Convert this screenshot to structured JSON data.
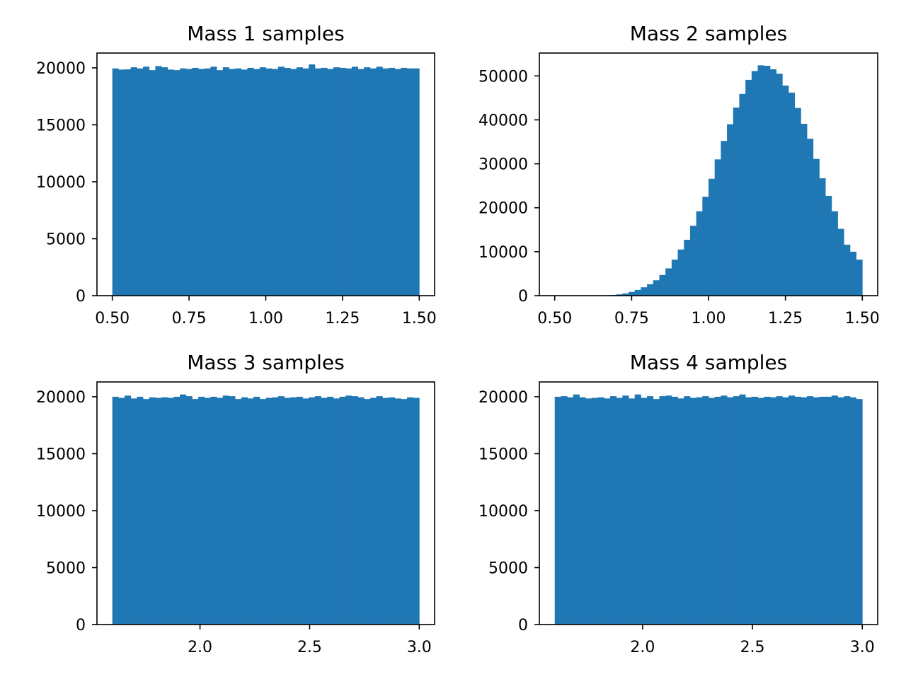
{
  "bar_color": "#1f77b4",
  "chart_data": [
    {
      "type": "bar",
      "title": "Mass 1 samples",
      "xlabel": "",
      "ylabel": "",
      "bins": 50,
      "x_range": [
        0.5,
        1.5
      ],
      "xlim": [
        0.45,
        1.55
      ],
      "ylim": [
        0,
        21300
      ],
      "xticks": [
        "0.50",
        "0.75",
        "1.00",
        "1.25",
        "1.50"
      ],
      "yticks": [
        "0",
        "5000",
        "10000",
        "15000",
        "20000"
      ],
      "values": [
        19950,
        19850,
        19870,
        20050,
        19950,
        20100,
        19800,
        20150,
        20050,
        19850,
        19800,
        19950,
        19900,
        20000,
        19900,
        19950,
        20100,
        19800,
        20050,
        19900,
        19950,
        19850,
        20000,
        19900,
        20050,
        19950,
        19900,
        20100,
        20000,
        19900,
        20050,
        19950,
        20300,
        19950,
        20000,
        19900,
        20050,
        20000,
        19950,
        20100,
        19900,
        20050,
        19950,
        20100,
        19950,
        20000,
        19900,
        20000,
        19950,
        19950
      ]
    },
    {
      "type": "bar",
      "title": "Mass 2 samples",
      "xlabel": "",
      "ylabel": "",
      "bins": 50,
      "x_range": [
        0.5,
        1.5
      ],
      "xlim": [
        0.45,
        1.55
      ],
      "ylim": [
        0,
        55200
      ],
      "xticks": [
        "0.50",
        "0.75",
        "1.00",
        "1.25",
        "1.50"
      ],
      "yticks": [
        "0",
        "10000",
        "20000",
        "30000",
        "40000",
        "50000"
      ],
      "values": [
        0,
        0,
        0,
        0,
        0,
        0,
        10,
        30,
        80,
        150,
        300,
        500,
        850,
        1300,
        1900,
        2600,
        3500,
        4700,
        6200,
        8200,
        10500,
        12700,
        15900,
        19200,
        22500,
        26600,
        31000,
        35200,
        39000,
        42800,
        45900,
        49100,
        51100,
        52400,
        52300,
        51500,
        50500,
        47800,
        46200,
        42700,
        39100,
        35700,
        31100,
        26700,
        22700,
        19200,
        15200,
        11600,
        10000,
        8200
      ]
    },
    {
      "type": "bar",
      "title": "Mass 3 samples",
      "xlabel": "",
      "ylabel": "",
      "bins": 50,
      "x_range": [
        1.6,
        3.0
      ],
      "xlim": [
        1.53,
        3.07
      ],
      "ylim": [
        0,
        21300
      ],
      "xticks": [
        "2.0",
        "2.5",
        "3.0"
      ],
      "yticks": [
        "0",
        "5000",
        "10000",
        "15000",
        "20000"
      ],
      "values": [
        20000,
        19900,
        20100,
        19850,
        20000,
        19800,
        19950,
        19900,
        19950,
        19900,
        20000,
        20200,
        20050,
        19800,
        20000,
        19900,
        20000,
        19900,
        20100,
        20050,
        19800,
        19950,
        19850,
        20000,
        19800,
        19900,
        19950,
        20050,
        19900,
        19950,
        20000,
        19850,
        19950,
        20050,
        19900,
        20000,
        19850,
        20000,
        20100,
        20050,
        19950,
        19800,
        19900,
        20050,
        19900,
        19950,
        19850,
        19800,
        19950,
        19900
      ]
    },
    {
      "type": "bar",
      "title": "Mass 4 samples",
      "xlabel": "",
      "ylabel": "",
      "bins": 50,
      "x_range": [
        1.6,
        3.0
      ],
      "xlim": [
        1.53,
        3.07
      ],
      "ylim": [
        0,
        21300
      ],
      "xticks": [
        "2.0",
        "2.5",
        "3.0"
      ],
      "yticks": [
        "0",
        "5000",
        "10000",
        "15000",
        "20000"
      ],
      "values": [
        20000,
        20050,
        19950,
        20200,
        19950,
        19850,
        19900,
        19950,
        19850,
        20050,
        19900,
        20100,
        19850,
        20200,
        19900,
        20050,
        19800,
        20050,
        20100,
        20000,
        19850,
        20050,
        19900,
        19950,
        20050,
        19900,
        20000,
        20100,
        19950,
        20050,
        20200,
        19950,
        20000,
        19900,
        20000,
        19950,
        20050,
        19950,
        20100,
        20000,
        19950,
        20050,
        19950,
        20000,
        20000,
        20100,
        19950,
        20050,
        19950,
        19800
      ]
    }
  ]
}
